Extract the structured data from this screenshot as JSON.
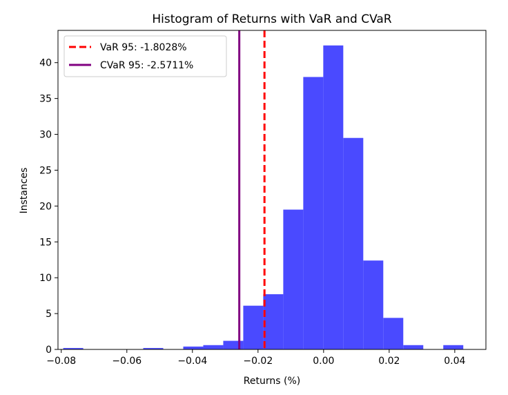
{
  "chart_data": {
    "type": "bar",
    "title": "Histogram of Returns with VaR and CVaR",
    "xlabel": "Returns (%)",
    "ylabel": "Instances",
    "xlim": [
      -0.081,
      0.0495
    ],
    "ylim": [
      0,
      44.5
    ],
    "bar_color": "#4a4aff",
    "bin_width": 0.0061,
    "bins": [
      {
        "x0": -0.0794,
        "count": 0.2
      },
      {
        "x0": -0.0733,
        "count": 0
      },
      {
        "x0": -0.0672,
        "count": 0
      },
      {
        "x0": -0.0611,
        "count": 0
      },
      {
        "x0": -0.055,
        "count": 0.2
      },
      {
        "x0": -0.0489,
        "count": 0
      },
      {
        "x0": -0.0428,
        "count": 0.4
      },
      {
        "x0": -0.0367,
        "count": 0.6
      },
      {
        "x0": -0.0306,
        "count": 1.2
      },
      {
        "x0": -0.0245,
        "count": 6.1
      },
      {
        "x0": -0.0184,
        "count": 7.7
      },
      {
        "x0": -0.0123,
        "count": 19.5
      },
      {
        "x0": -0.0062,
        "count": 38.0
      },
      {
        "x0": -0.0001,
        "count": 42.4
      },
      {
        "x0": 0.006,
        "count": 29.5
      },
      {
        "x0": 0.0121,
        "count": 12.4
      },
      {
        "x0": 0.0182,
        "count": 4.4
      },
      {
        "x0": 0.0243,
        "count": 0.6
      },
      {
        "x0": 0.0304,
        "count": 0
      },
      {
        "x0": 0.0365,
        "count": 0.6
      }
    ],
    "xticks": [
      {
        "value": -0.08,
        "label": "−0.08"
      },
      {
        "value": -0.06,
        "label": "−0.06"
      },
      {
        "value": -0.04,
        "label": "−0.04"
      },
      {
        "value": -0.02,
        "label": "−0.02"
      },
      {
        "value": 0.0,
        "label": "0.00"
      },
      {
        "value": 0.02,
        "label": "0.02"
      },
      {
        "value": 0.04,
        "label": "0.04"
      }
    ],
    "yticks": [
      {
        "value": 0,
        "label": "0"
      },
      {
        "value": 5,
        "label": "5"
      },
      {
        "value": 10,
        "label": "10"
      },
      {
        "value": 15,
        "label": "15"
      },
      {
        "value": 20,
        "label": "20"
      },
      {
        "value": 25,
        "label": "25"
      },
      {
        "value": 30,
        "label": "30"
      },
      {
        "value": 35,
        "label": "35"
      },
      {
        "value": 40,
        "label": "40"
      }
    ],
    "lines": [
      {
        "name": "VaR 95: -1.8028%",
        "x": -0.018028,
        "color": "#ff0000",
        "style": "dashed"
      },
      {
        "name": "CVaR 95: -2.5711%",
        "x": -0.025711,
        "color": "#800080",
        "style": "solid"
      }
    ],
    "grid": false,
    "legend_position": "top-left"
  }
}
